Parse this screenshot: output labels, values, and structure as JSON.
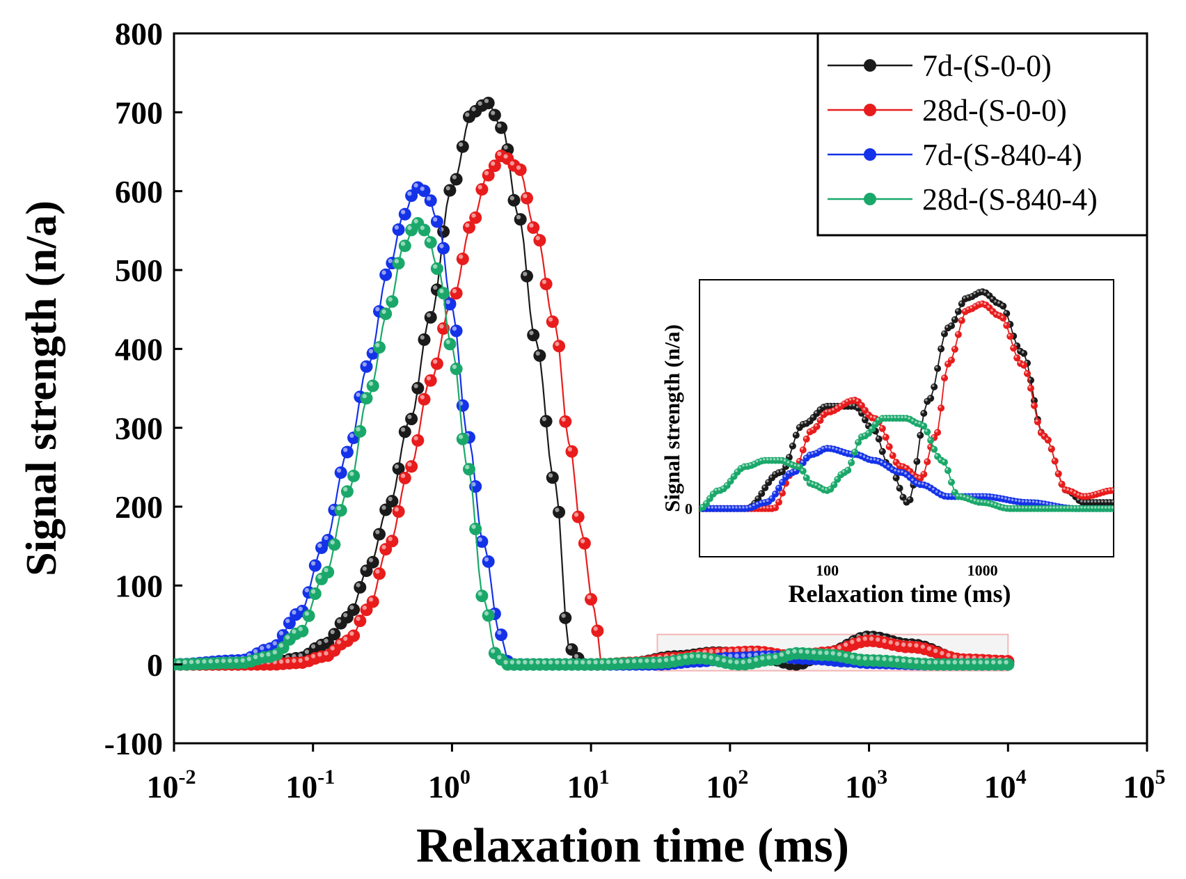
{
  "chart_data": [
    {
      "id": "main",
      "type": "line",
      "xscale": "log",
      "xlim": [
        0.01,
        100000
      ],
      "ylim": [
        -100,
        800
      ],
      "xlabel": "Relaxation time (ms)",
      "ylabel": "Signal strength (n/a)",
      "yticks": [
        -100,
        0,
        100,
        200,
        300,
        400,
        500,
        600,
        700,
        800
      ],
      "xticks": [
        {
          "base": "10",
          "exp": "-2"
        },
        {
          "base": "10",
          "exp": "-1"
        },
        {
          "base": "10",
          "exp": "0"
        },
        {
          "base": "10",
          "exp": "1"
        },
        {
          "base": "10",
          "exp": "2"
        },
        {
          "base": "10",
          "exp": "3"
        },
        {
          "base": "10",
          "exp": "4"
        },
        {
          "base": "10",
          "exp": "5"
        }
      ],
      "legend_position": "top-right",
      "inset_region_x": [
        30,
        10000
      ],
      "inset_region_y": [
        -8,
        38
      ],
      "series": [
        {
          "name": "7d-(S-0-0)",
          "color": "#1a1a1a",
          "x": [
            0.01,
            0.03,
            0.05,
            0.08,
            0.12,
            0.18,
            0.25,
            0.35,
            0.5,
            0.7,
            1.0,
            1.4,
            1.8,
            2.3,
            3.0,
            4.0,
            5.5,
            7.0,
            9.0,
            12,
            20,
            40,
            80,
            150,
            300,
            500,
            1000,
            2000,
            5000,
            10000
          ],
          "y": [
            0,
            0,
            2,
            8,
            25,
            60,
            120,
            200,
            310,
            440,
            605,
            700,
            712,
            680,
            570,
            410,
            230,
            20,
            0,
            0,
            2,
            10,
            15,
            12,
            0,
            15,
            35,
            25,
            5,
            3
          ]
        },
        {
          "name": "28d-(S-0-0)",
          "color": "#e81c1c",
          "x": [
            0.01,
            0.03,
            0.05,
            0.08,
            0.12,
            0.18,
            0.25,
            0.35,
            0.5,
            0.7,
            1.0,
            1.4,
            1.8,
            2.3,
            3.0,
            4.0,
            5.5,
            7.0,
            8.5,
            10.5,
            12,
            20,
            40,
            80,
            150,
            300,
            500,
            1000,
            2000,
            5000,
            10000
          ],
          "y": [
            0,
            0,
            0,
            2,
            10,
            30,
            70,
            150,
            250,
            360,
            460,
            560,
            620,
            645,
            630,
            550,
            430,
            280,
            170,
            70,
            0,
            2,
            8,
            14,
            16,
            10,
            15,
            30,
            22,
            6,
            4
          ]
        },
        {
          "name": "7d-(S-840-4)",
          "color": "#1432e8",
          "x": [
            0.01,
            0.03,
            0.05,
            0.08,
            0.12,
            0.18,
            0.25,
            0.35,
            0.45,
            0.55,
            0.65,
            0.8,
            1.0,
            1.3,
            1.7,
            2.2,
            2.6,
            3.0,
            5,
            10,
            30,
            60,
            100,
            200,
            400,
            700,
            1000,
            3000,
            10000
          ],
          "y": [
            0,
            5,
            20,
            65,
            150,
            270,
            380,
            500,
            570,
            605,
            600,
            560,
            450,
            290,
            150,
            40,
            0,
            0,
            0,
            0,
            0,
            4,
            8,
            10,
            7,
            4,
            2,
            0,
            0
          ]
        },
        {
          "name": "28d-(S-840-4)",
          "color": "#1aa86a",
          "x": [
            0.01,
            0.03,
            0.05,
            0.08,
            0.12,
            0.18,
            0.25,
            0.35,
            0.45,
            0.55,
            0.65,
            0.8,
            1.0,
            1.3,
            1.7,
            2.1,
            2.5,
            3.0,
            5,
            10,
            30,
            60,
            120,
            200,
            300,
            500,
            1000,
            3000,
            10000
          ],
          "y": [
            0,
            2,
            10,
            40,
            110,
            220,
            340,
            450,
            530,
            560,
            550,
            500,
            400,
            250,
            80,
            10,
            0,
            0,
            0,
            0,
            2,
            8,
            0,
            6,
            14,
            12,
            5,
            0,
            0
          ]
        }
      ]
    },
    {
      "id": "inset",
      "type": "line",
      "xscale": "log",
      "xlim": [
        15,
        7000
      ],
      "ylim": [
        -8,
        38
      ],
      "xlabel": "Relaxation time (ms)",
      "ylabel": "Signal strength (n/a)",
      "xticks": [
        "100",
        "1000"
      ],
      "yticks": [
        "0"
      ],
      "series": [
        {
          "name": "7d-(S-0-0)",
          "color": "#1a1a1a",
          "x": [
            15,
            20,
            30,
            50,
            70,
            100,
            150,
            200,
            250,
            330,
            450,
            600,
            800,
            1000,
            1300,
            1800,
            2500,
            3500,
            4500,
            7000
          ],
          "y": [
            0,
            0,
            0,
            6,
            14,
            17,
            17,
            13,
            7,
            1,
            18,
            30,
            35,
            36,
            34,
            26,
            12,
            3,
            1,
            1
          ]
        },
        {
          "name": "28d-(S-0-0)",
          "color": "#e81c1c",
          "x": [
            15,
            20,
            30,
            45,
            60,
            80,
            100,
            150,
            200,
            300,
            400,
            500,
            600,
            800,
            1000,
            1300,
            1800,
            2500,
            3500,
            4500,
            7000
          ],
          "y": [
            0,
            0,
            0,
            0,
            6,
            13,
            16,
            18,
            15,
            7,
            5,
            12,
            24,
            33,
            34,
            32,
            24,
            12,
            3,
            2,
            3
          ]
        },
        {
          "name": "7d-(S-840-4)",
          "color": "#1432e8",
          "x": [
            15,
            20,
            30,
            40,
            60,
            80,
            100,
            150,
            200,
            300,
            400,
            600,
            1000,
            2000,
            4000,
            7000
          ],
          "y": [
            0,
            0,
            0,
            1,
            6,
            9,
            10,
            9,
            8,
            6,
            4,
            2,
            2,
            1,
            0,
            0
          ]
        },
        {
          "name": "28d-(S-840-4)",
          "color": "#1aa86a",
          "x": [
            15,
            20,
            30,
            40,
            50,
            65,
            80,
            100,
            130,
            170,
            230,
            320,
            400,
            550,
            700,
            1000,
            1500,
            3000,
            7000
          ],
          "y": [
            0,
            3,
            7,
            8,
            8,
            7,
            4,
            3,
            6,
            12,
            15,
            15,
            14,
            8,
            2,
            1,
            0,
            0,
            0
          ]
        }
      ]
    }
  ]
}
